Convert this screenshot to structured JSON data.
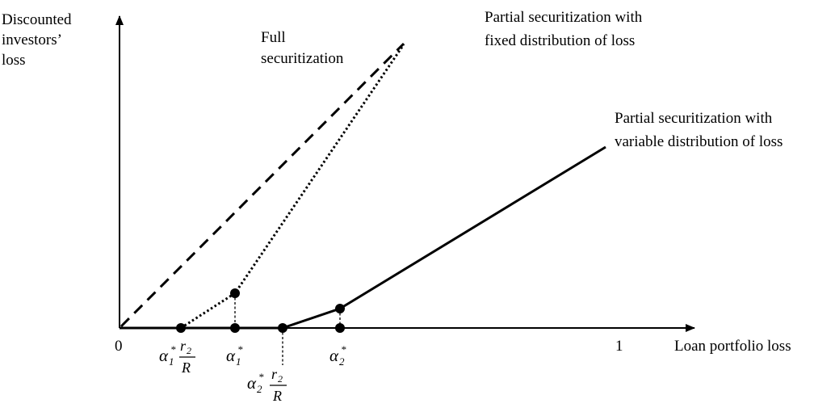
{
  "axes": {
    "y_label_lines": [
      "Discounted",
      "investors’",
      "loss"
    ],
    "x_label": "Loan portfolio loss",
    "origin_label": "0",
    "x_end_label": "1"
  },
  "curves": {
    "full": {
      "label_lines": [
        "Full",
        "securitization"
      ],
      "style": "dashed"
    },
    "fixed": {
      "label_lines": [
        "Partial securitization with",
        "fixed distribution of loss"
      ],
      "style": "dotted"
    },
    "variable": {
      "label_lines": [
        "Partial securitization with",
        "variable distribution of loss"
      ],
      "style": "solid"
    }
  },
  "ticks": {
    "a1_r2_over_R": {
      "alpha": "α",
      "sub": "1",
      "sup": "*",
      "num": "r",
      "num_sub": "2",
      "den": "R"
    },
    "a1": {
      "alpha": "α",
      "sub": "1",
      "sup": "*"
    },
    "a2_r2_over_R": {
      "alpha": "α",
      "sub": "2",
      "sup": "*",
      "num": "r",
      "num_sub": "2",
      "den": "R"
    },
    "a2": {
      "alpha": "α",
      "sub": "2",
      "sup": "*"
    }
  }
}
